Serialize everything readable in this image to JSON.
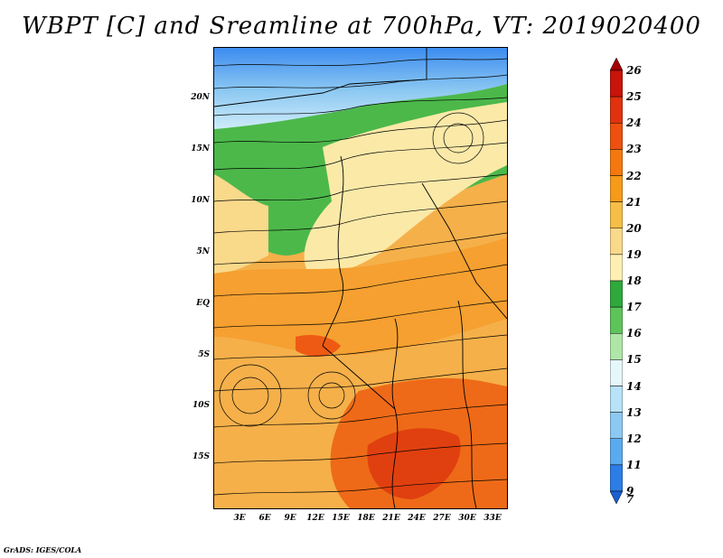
{
  "title": "WBPT [C] and Sreamline at 700hPa, VT: 2019020400",
  "footer": "GrADS: IGES/COLA",
  "axes": {
    "lat_labels": [
      "20N",
      "15N",
      "10N",
      "5N",
      "EQ",
      "5S",
      "10S",
      "15S"
    ],
    "lon_labels": [
      "3E",
      "6E",
      "9E",
      "12E",
      "15E",
      "18E",
      "21E",
      "24E",
      "27E",
      "30E",
      "33E"
    ]
  },
  "colorbar": {
    "labels": [
      "26",
      "25",
      "24",
      "23",
      "22",
      "21",
      "20",
      "19",
      "18",
      "17",
      "16",
      "15",
      "14",
      "13",
      "12",
      "11",
      "9",
      "7"
    ],
    "colors": [
      "#a50000",
      "#c8140a",
      "#e0320f",
      "#ee5010",
      "#f5780f",
      "#f59b19",
      "#f5be46",
      "#f9d98a",
      "#fdf0b2",
      "#2fa83c",
      "#5dc45a",
      "#aee6a8",
      "#e6f7fa",
      "#b7e2f7",
      "#8cc8f2",
      "#5aaaf0",
      "#2d7de6",
      "#1a5fd2"
    ]
  }
}
